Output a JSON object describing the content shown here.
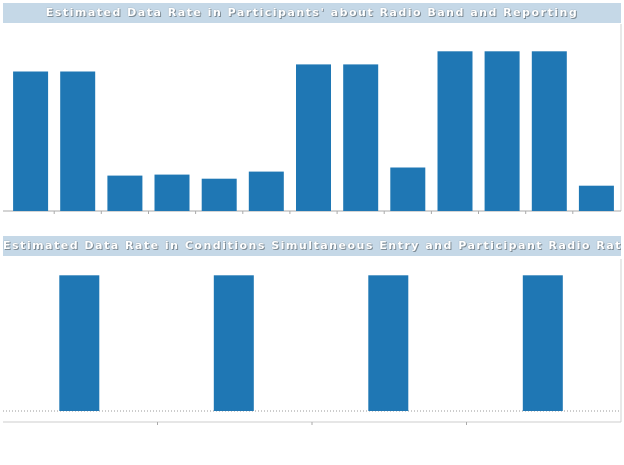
{
  "chart_data": [
    {
      "type": "bar",
      "title": "Estimated Data Rate in Participants' about Radio Band and Reporting",
      "values": [
        138,
        138,
        35,
        36,
        32,
        39,
        145,
        145,
        43,
        158,
        158,
        158,
        25
      ],
      "ylim": [
        0,
        185
      ],
      "color": "#1f77b4",
      "grid": false
    },
    {
      "type": "bar",
      "title": "Estimated Data Rate in Conditions Simultaneous Entry and Participant Radio Rate",
      "values": [
        1,
        1,
        1,
        1
      ],
      "ylim": [
        0,
        1.12
      ],
      "color": "#1f77b4",
      "grid": false
    }
  ]
}
